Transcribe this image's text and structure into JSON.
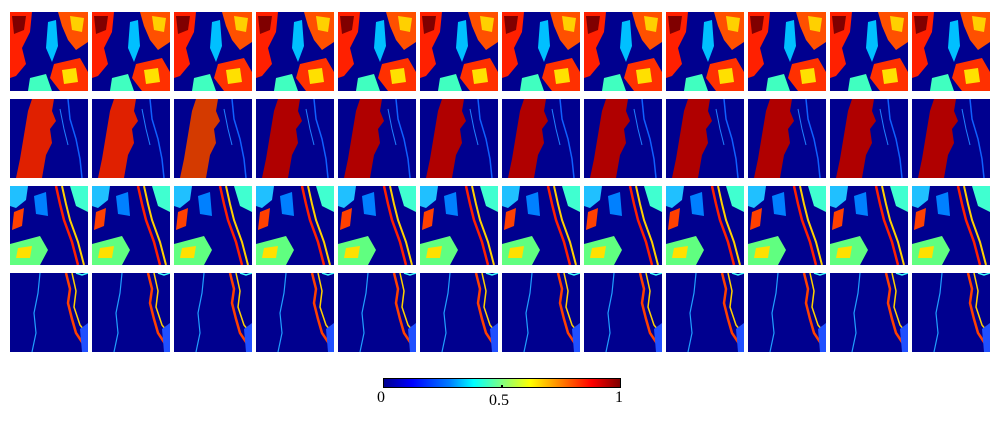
{
  "figure": {
    "rows": [
      {
        "id": "row-1",
        "pattern": "mixed-red-patches",
        "tiles": 12
      },
      {
        "id": "row-2",
        "pattern": "large-red-river",
        "tiles": 12
      },
      {
        "id": "row-3",
        "pattern": "cyan-yellow-streaks",
        "tiles": 12
      },
      {
        "id": "row-4",
        "pattern": "thin-edge-curve",
        "tiles": 12
      }
    ],
    "colormap": {
      "name": "jet",
      "stops": [
        "#00008f",
        "#0000ff",
        "#0080ff",
        "#00ffff",
        "#80ff80",
        "#ffff00",
        "#ff8000",
        "#ff0000",
        "#800000"
      ]
    },
    "colorbar": {
      "min_label": "0",
      "mid_label": "0.5",
      "max_label": "1"
    }
  }
}
